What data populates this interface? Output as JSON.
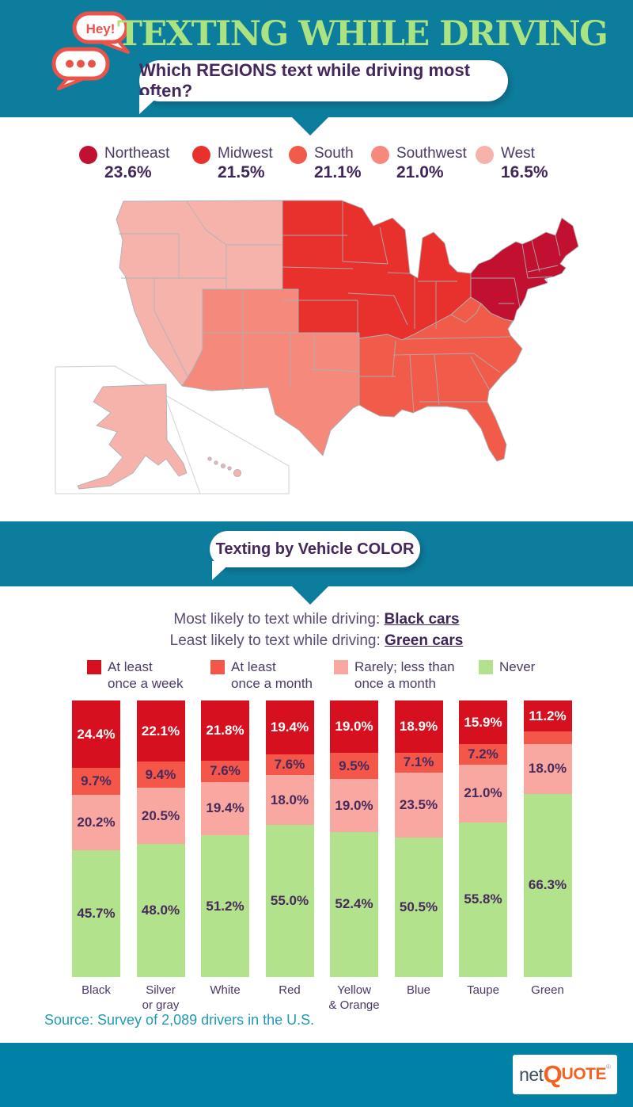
{
  "colors": {
    "teal_band": "#0c7d9c",
    "teal_footer": "#0281a6",
    "title_green": "#abe383",
    "purple_text": "#3f2658",
    "bubble_red": "#e9534a",
    "source_teal": "#1f9ab8",
    "logo_orange": "#f26322",
    "logo_gray": "#3d4f5c"
  },
  "header": {
    "hey_label": "Hey!",
    "title": "TEXTING WHILE DRIVING",
    "question": "Which REGIONS text while driving most often?"
  },
  "region_legend": [
    {
      "name": "Northeast",
      "value": "23.6%",
      "color": "#c21130"
    },
    {
      "name": "Midwest",
      "value": "21.5%",
      "color": "#e8312c"
    },
    {
      "name": "South",
      "value": "21.1%",
      "color": "#f05c49"
    },
    {
      "name": "Southwest",
      "value": "21.0%",
      "color": "#f4897c"
    },
    {
      "name": "West",
      "value": "16.5%",
      "color": "#f6b3ac"
    }
  ],
  "vehicle_section": {
    "bubble_title": "Texting by Vehicle COLOR",
    "most_label": "Most likely to text while driving: ",
    "most_value": "Black cars",
    "least_label": "Least likely to text while driving: ",
    "least_value": "Green cars"
  },
  "chart_data": {
    "type": "stacked-bar",
    "unit": "%",
    "ymax": 100,
    "legend_position": "top",
    "categories": [
      "Black",
      "Silver\nor gray",
      "White",
      "Red",
      "Yellow\n& Orange",
      "Blue",
      "Taupe",
      "Green"
    ],
    "series": [
      {
        "name": "At least\nonce a week",
        "color": "#d6101f",
        "label_color": "#ffffff",
        "values": [
          24.4,
          22.1,
          21.8,
          19.4,
          19.0,
          18.9,
          15.9,
          11.2
        ]
      },
      {
        "name": "At least\nonce a month",
        "color": "#f4564a",
        "label_color": "#46295a",
        "values": [
          9.7,
          9.4,
          7.6,
          7.6,
          9.5,
          7.1,
          7.2,
          4.5
        ],
        "unlabeled_indexes": [
          7
        ]
      },
      {
        "name": "Rarely; less than\nonce a month",
        "color": "#f8a8a1",
        "label_color": "#46295a",
        "values": [
          20.2,
          20.5,
          19.4,
          18.0,
          19.0,
          23.5,
          21.0,
          18.0
        ]
      },
      {
        "name": "Never",
        "color": "#b2e28b",
        "label_color": "#46295a",
        "values": [
          45.7,
          48.0,
          51.2,
          55.0,
          52.4,
          50.5,
          55.8,
          66.3
        ]
      }
    ]
  },
  "source": "Source: Survey of 2,089 drivers in the U.S.",
  "footer": {
    "logo_net": "net",
    "logo_q": "Q",
    "logo_uote": "UOTE",
    "registered": "®"
  }
}
